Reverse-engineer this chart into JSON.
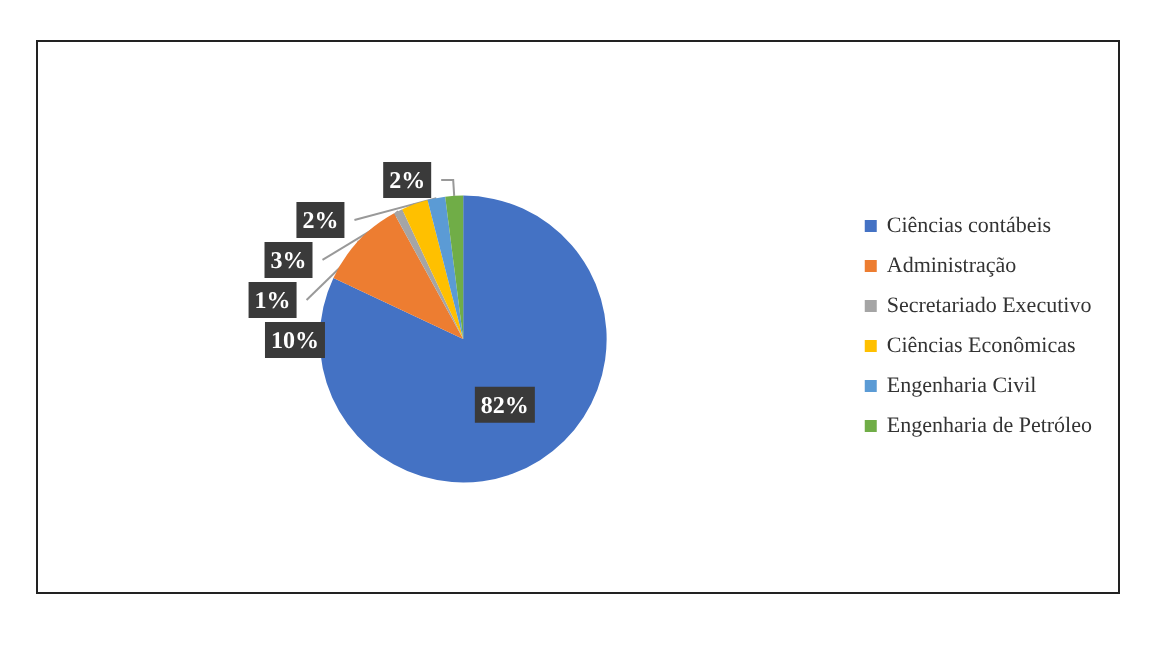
{
  "chart_data": {
    "type": "pie",
    "categories": [
      "Ciências contábeis",
      "Administração",
      "Secretariado Executivo",
      "Ciências Econômicas",
      "Engenharia Civil",
      "Engenharia de Petróleo"
    ],
    "values": [
      82,
      10,
      1,
      3,
      2,
      2
    ],
    "colors": [
      "#4472c4",
      "#ed7d31",
      "#a5a5a5",
      "#ffc000",
      "#5b9bd5",
      "#70ad47"
    ],
    "value_labels": [
      "82%",
      "10%",
      "1%",
      "3%",
      "2%",
      "2%"
    ],
    "legend": "right"
  }
}
